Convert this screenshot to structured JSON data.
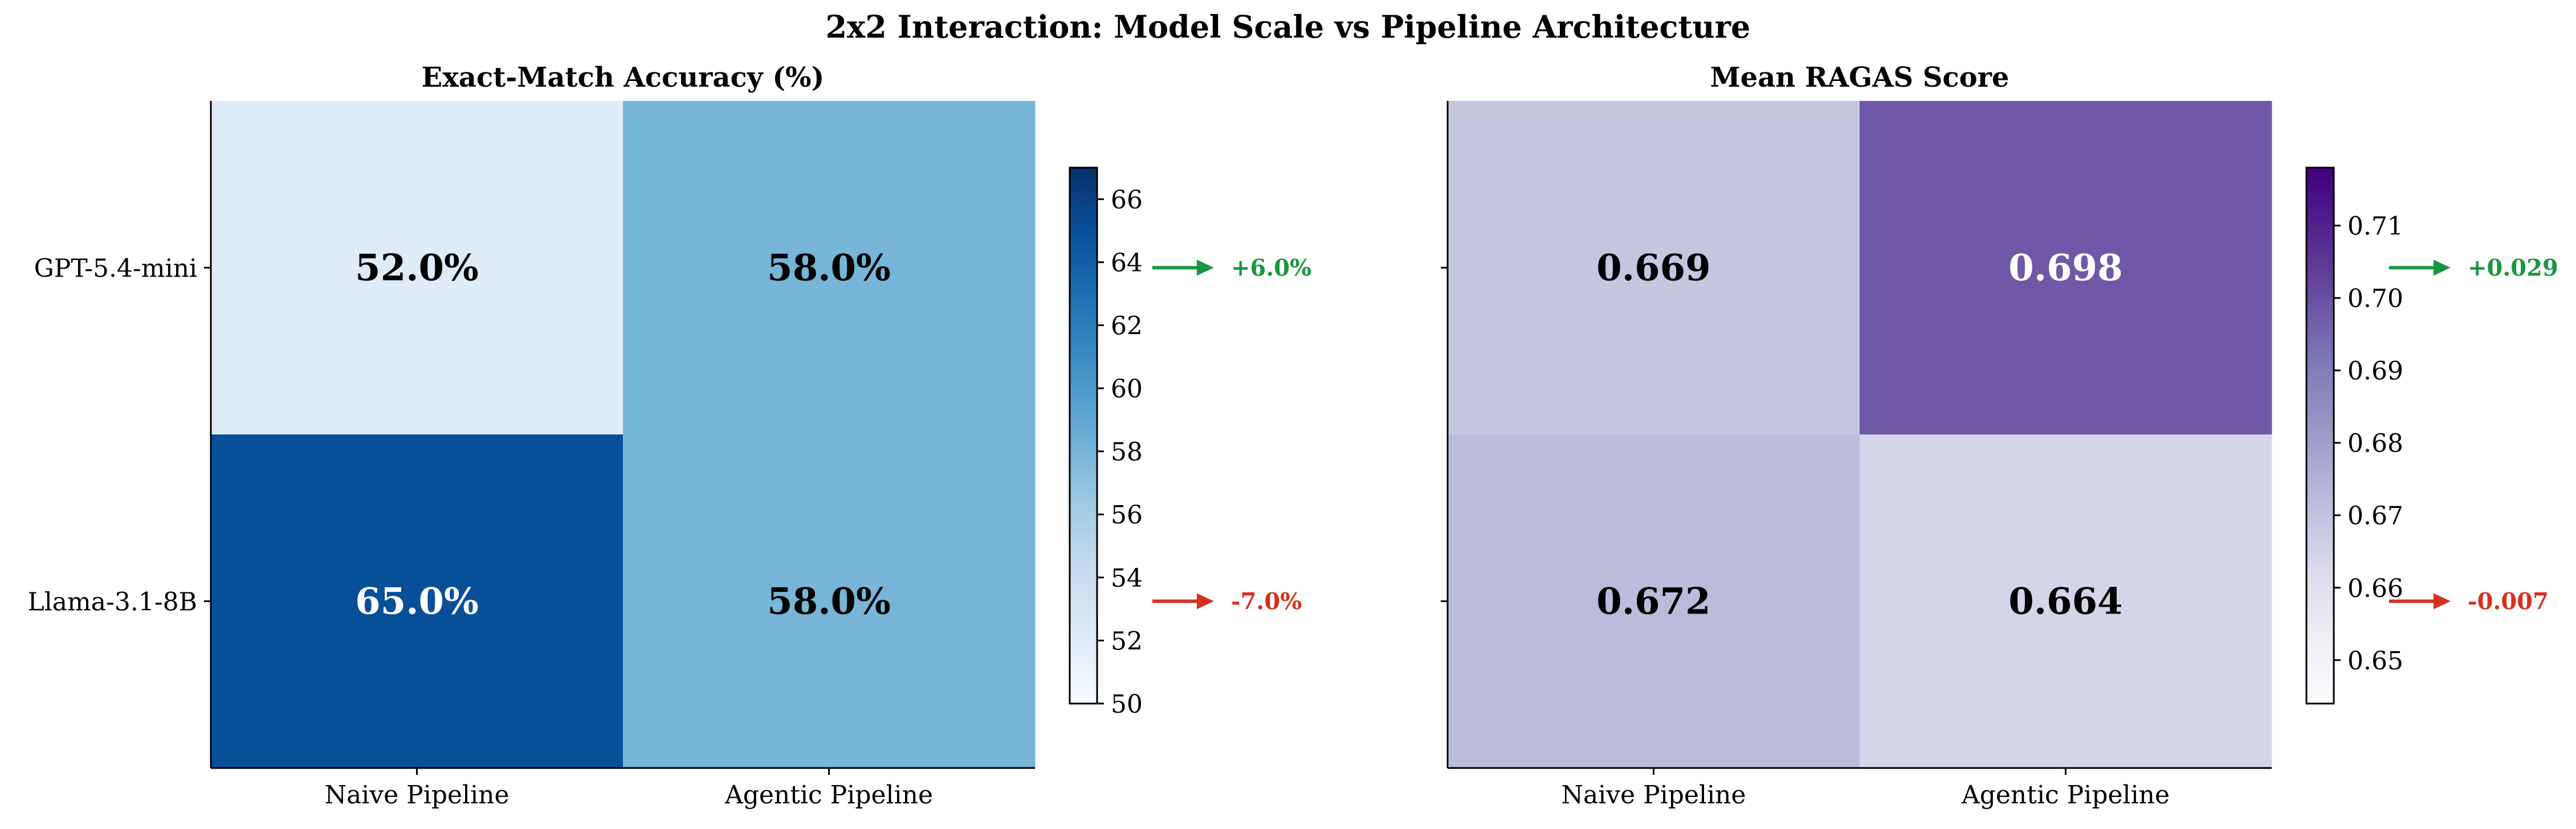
{
  "figure": {
    "suptitle": "2x2 Interaction: Model Scale vs Pipeline Architecture"
  },
  "chart_data": [
    {
      "type": "heatmap",
      "title": "Exact-Match Accuracy (%)",
      "rows": [
        "GPT-5.4-mini",
        "Llama-3.1-8B"
      ],
      "columns": [
        "Naive Pipeline",
        "Agentic Pipeline"
      ],
      "values": [
        [
          52.0,
          58.0
        ],
        [
          65.0,
          58.0
        ]
      ],
      "cell_labels": [
        [
          "52.0%",
          "58.0%"
        ],
        [
          "65.0%",
          "58.0%"
        ]
      ],
      "colormap": "Blues",
      "colormap_stops": [
        "#f7fbff",
        "#deebf7",
        "#c6dbef",
        "#9ecae1",
        "#6baed6",
        "#4292c6",
        "#2171b5",
        "#08519c",
        "#08306b"
      ],
      "colorbar": {
        "range": [
          50,
          67
        ],
        "ticks": [
          50,
          52,
          54,
          56,
          58,
          60,
          62,
          64,
          66
        ]
      },
      "deltas": [
        {
          "row": "GPT-5.4-mini",
          "label": "+6.0%",
          "value": 6.0,
          "color": "#1a9641"
        },
        {
          "row": "Llama-3.1-8B",
          "label": "-7.0%",
          "value": -7.0,
          "color": "#d7301f"
        }
      ]
    },
    {
      "type": "heatmap",
      "title": "Mean RAGAS Score",
      "rows": [
        "GPT-5.4-mini",
        "Llama-3.1-8B"
      ],
      "columns": [
        "Naive Pipeline",
        "Agentic Pipeline"
      ],
      "values": [
        [
          0.669,
          0.698
        ],
        [
          0.672,
          0.664
        ]
      ],
      "cell_labels": [
        [
          "0.669",
          "0.698"
        ],
        [
          "0.672",
          "0.664"
        ]
      ],
      "colormap": "Purples",
      "colormap_stops": [
        "#fcfbfd",
        "#efedf5",
        "#dadaeb",
        "#bcbddc",
        "#9e9ac8",
        "#807dba",
        "#6a51a3",
        "#54278f",
        "#3f007d"
      ],
      "colorbar": {
        "range": [
          0.644,
          0.718
        ],
        "ticks": [
          0.65,
          0.66,
          0.67,
          0.68,
          0.69,
          0.7,
          0.71
        ],
        "tick_labels": [
          "0.65",
          "0.66",
          "0.67",
          "0.68",
          "0.69",
          "0.70",
          "0.71"
        ]
      },
      "deltas": [
        {
          "row": "GPT-5.4-mini",
          "label": "+0.029",
          "value": 0.029,
          "color": "#1a9641"
        },
        {
          "row": "Llama-3.1-8B",
          "label": "-0.007",
          "value": -0.007,
          "color": "#d7301f"
        }
      ]
    }
  ]
}
